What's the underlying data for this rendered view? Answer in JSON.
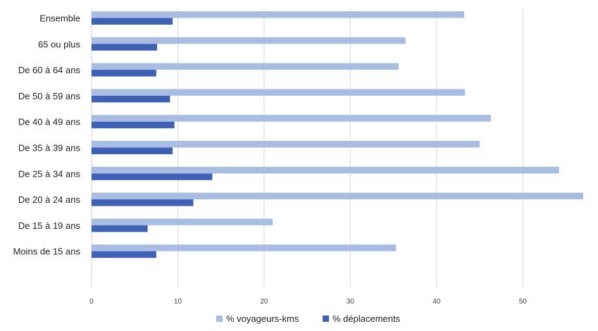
{
  "chart_data": {
    "type": "bar",
    "orientation": "horizontal",
    "categories": [
      "Ensemble",
      "65 ou plus",
      "De 60 à 64 ans",
      "De 50 à 59 ans",
      "De 40 à 49 ans",
      "De 35 à 39 ans",
      "De 25 à 34 ans",
      "De 20 à 24 ans",
      "De 15 à 19 ans",
      "Moins de 15 ans"
    ],
    "series": [
      {
        "name": "% voyageurs-kms",
        "color": "#a9bde3",
        "values": [
          43.2,
          36.4,
          35.6,
          43.3,
          46.3,
          45.0,
          54.2,
          57.0,
          21.0,
          35.3
        ]
      },
      {
        "name": "% déplacements",
        "color": "#3f61b5",
        "values": [
          9.4,
          7.6,
          7.5,
          9.1,
          9.6,
          9.4,
          14.0,
          11.8,
          6.5,
          7.5
        ]
      }
    ],
    "xticks": [
      "0",
      "10",
      "20",
      "30",
      "40",
      "50"
    ],
    "xlim": [
      0,
      57
    ],
    "grid": true,
    "legend_position": "bottom"
  }
}
